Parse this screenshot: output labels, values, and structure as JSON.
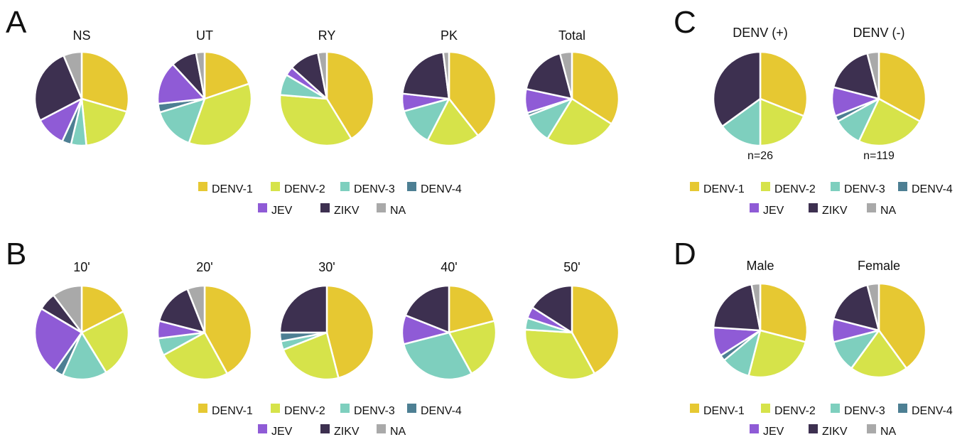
{
  "colors": {
    "DENV-1": "#E6C832",
    "DENV-2": "#D6E34A",
    "DENV-3": "#7ECFBE",
    "DENV-4": "#4D7F93",
    "JEV": "#8F5BD6",
    "ZIKV": "#3D3050",
    "NA": "#A9A9A9"
  },
  "legend": [
    "DENV-1",
    "DENV-2",
    "DENV-3",
    "DENV-4",
    "JEV",
    "ZIKV",
    "NA"
  ],
  "chart_data": [
    {
      "panel": "A",
      "type": "pie",
      "categories": [
        "DENV-1",
        "DENV-2",
        "DENV-3",
        "DENV-4",
        "JEV",
        "ZIKV",
        "NA"
      ],
      "pies": [
        {
          "title": "NS",
          "values": [
            28,
            18,
            5,
            3,
            10,
            25,
            6
          ]
        },
        {
          "title": "UT",
          "values": [
            20,
            36,
            15,
            3,
            15,
            9,
            3
          ]
        },
        {
          "title": "RY",
          "values": [
            40,
            34,
            7,
            0,
            3,
            10,
            3
          ]
        },
        {
          "title": "PK",
          "values": [
            39,
            18,
            13,
            0,
            6,
            21,
            2
          ]
        },
        {
          "title": "Total",
          "values": [
            33,
            24,
            10,
            1,
            8,
            17,
            4
          ]
        }
      ]
    },
    {
      "panel": "B",
      "type": "pie",
      "categories": [
        "DENV-1",
        "DENV-2",
        "DENV-3",
        "DENV-4",
        "JEV",
        "ZIKV",
        "NA"
      ],
      "pies": [
        {
          "title": "10'",
          "values": [
            17,
            23,
            15,
            3,
            23,
            6,
            10
          ]
        },
        {
          "title": "20'",
          "values": [
            42,
            25,
            6,
            0,
            6,
            15,
            6
          ]
        },
        {
          "title": "30'",
          "values": [
            46,
            23,
            3,
            3,
            0,
            25,
            0
          ]
        },
        {
          "title": "40'",
          "values": [
            21,
            21,
            29,
            0,
            10,
            19,
            0
          ]
        },
        {
          "title": "50'",
          "values": [
            42,
            34,
            4,
            0,
            4,
            16,
            0
          ]
        }
      ]
    },
    {
      "panel": "C",
      "type": "pie",
      "categories": [
        "DENV-1",
        "DENV-2",
        "DENV-3",
        "DENV-4",
        "JEV",
        "ZIKV",
        "NA"
      ],
      "pies": [
        {
          "title": "DENV (+)",
          "note": "n=26",
          "values": [
            31,
            19,
            15,
            0,
            0,
            35,
            0
          ]
        },
        {
          "title": "DENV (-)",
          "note": "n=119",
          "values": [
            33,
            24,
            10,
            2,
            10,
            17,
            4
          ]
        }
      ]
    },
    {
      "panel": "D",
      "type": "pie",
      "categories": [
        "DENV-1",
        "DENV-2",
        "DENV-3",
        "DENV-4",
        "JEV",
        "ZIKV",
        "NA"
      ],
      "pies": [
        {
          "title": "Male",
          "values": [
            29,
            25,
            10,
            2,
            10,
            21,
            3
          ]
        },
        {
          "title": "Female",
          "values": [
            40,
            20,
            11,
            0,
            8,
            17,
            4
          ]
        }
      ]
    }
  ]
}
